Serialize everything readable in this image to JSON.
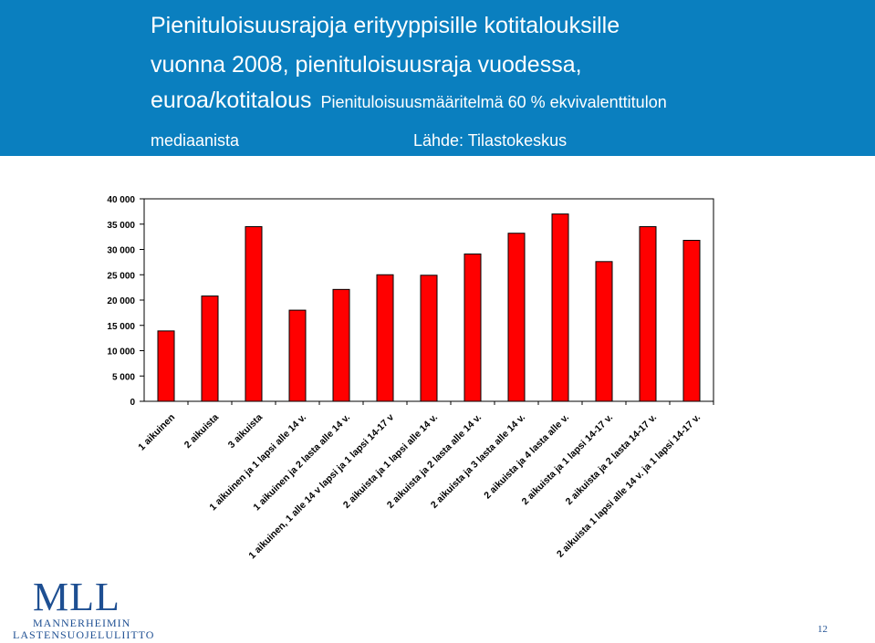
{
  "header": {
    "title_line1": "Pienituloisuusrajoja erityyppisille kotitalouksille",
    "title_line2": "vuonna 2008, pienituloisuusraja vuodessa,",
    "title_line3": "euroa/kotitalous",
    "definition_part1": "Pienituloisuusmääritelmä 60 % ekvivalenttitulon",
    "definition_part2": "mediaanista",
    "source": "Lähde: Tilastokeskus"
  },
  "colors": {
    "header_bg": "#0a7fbf",
    "bar_fill": "#ff0000",
    "logo": "#1e4f92"
  },
  "logo": {
    "mark": "MLL",
    "org_line1": "MANNERHEIMIN",
    "org_line2": "LASTENSUOJELULIITTO"
  },
  "page_number": "12",
  "chart_data": {
    "type": "bar",
    "categories": [
      "1 aikuinen",
      "2 aikuista",
      "3 aikuista",
      "1 aikuinen ja 1 lapsi alle 14 v.",
      "1 aikuinen ja 2 lasta alle 14 v.",
      "1 aikuinen, 1 alle 14 v lapsi ja 1 lapsi 14-17 v",
      "2 aikuista ja 1 lapsi alle 14 v.",
      "2 aikuista ja 2 lasta alle 14 v.",
      "2 aikuista ja 3 lasta alle 14 v.",
      "2 aikuista ja 4 lasta alle v.",
      "2 aikuista ja 1 lapsi 14-17 v.",
      "2 aikuista ja 2 lasta 14-17 v.",
      "2 aikuista 1 lapsi alle 14 v. ja 1 lapsi 14-17 v."
    ],
    "values": [
      13900,
      20800,
      34500,
      18000,
      22100,
      25000,
      24900,
      29100,
      33200,
      37000,
      27600,
      34500,
      31800
    ],
    "y_ticks": [
      "0",
      "5 000",
      "10 000",
      "15 000",
      "20 000",
      "25 000",
      "30 000",
      "35 000",
      "40 000"
    ],
    "ylim": [
      0,
      40000
    ],
    "title": "",
    "xlabel": "",
    "ylabel": "",
    "grid": false,
    "legend": "none"
  }
}
